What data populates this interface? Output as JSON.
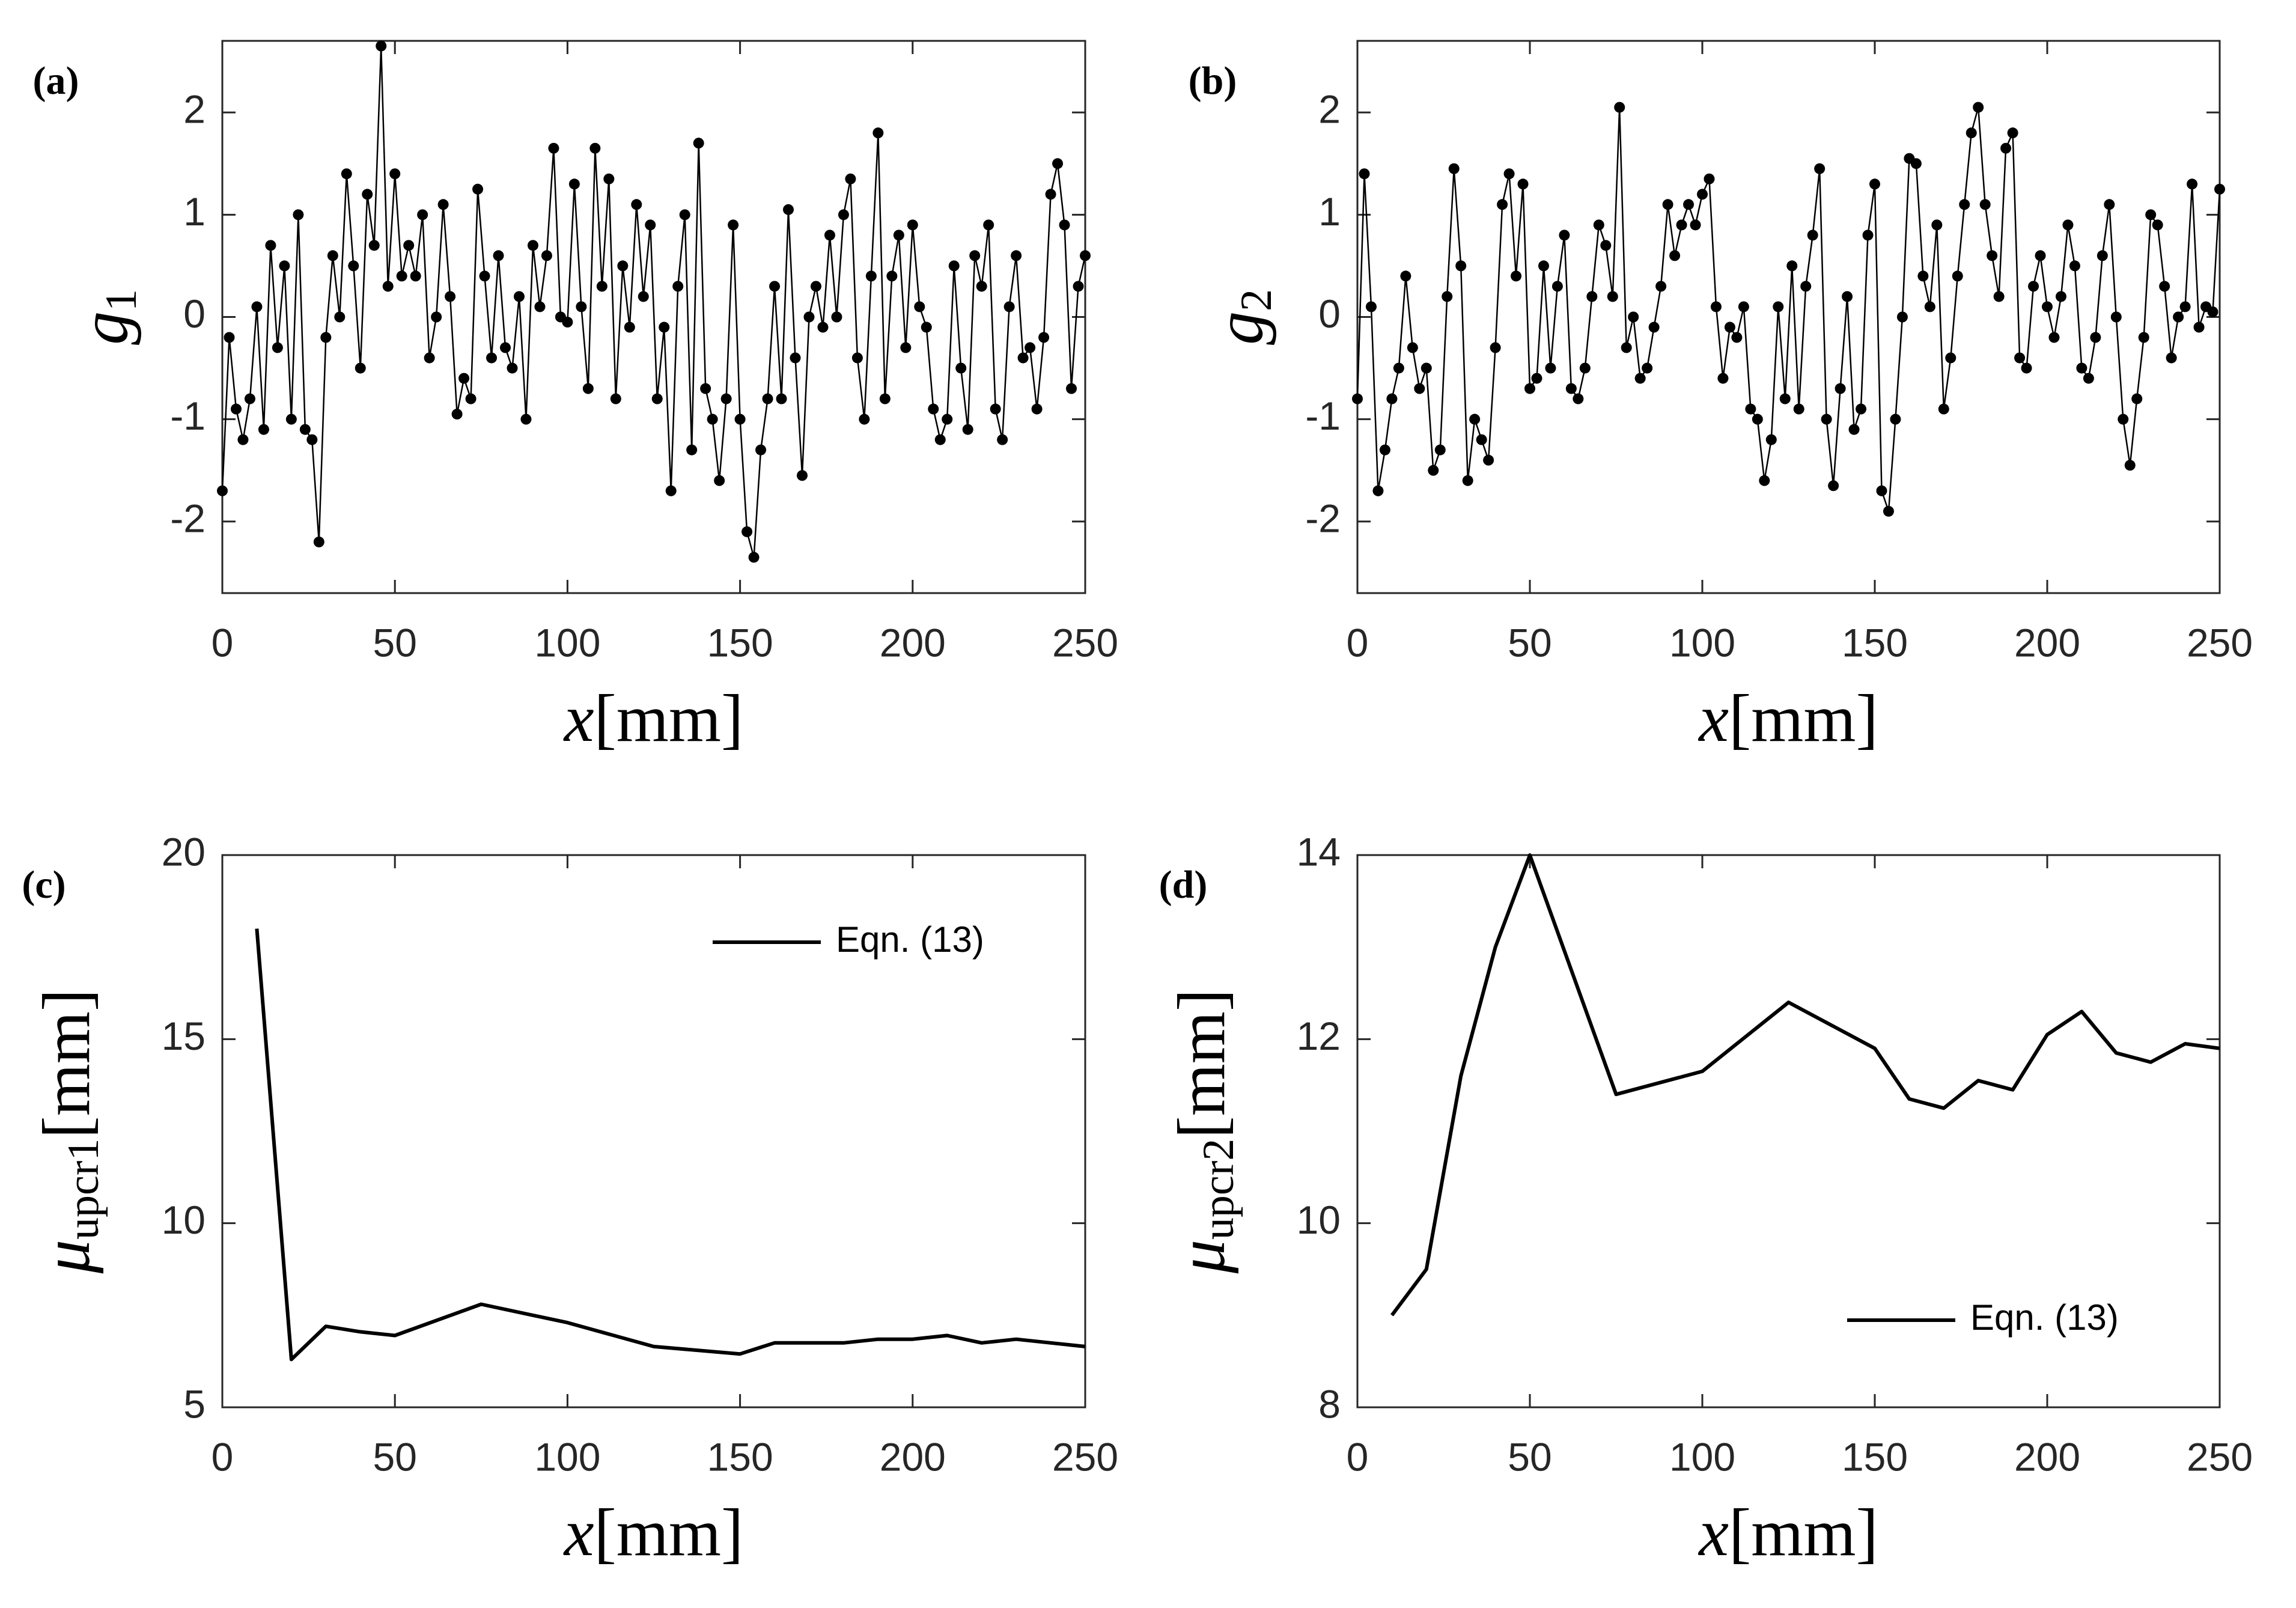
{
  "chart_data": [
    {
      "type": "line",
      "panel": "(a)",
      "markers": true,
      "xlabel": {
        "symbol": "x",
        "unit": "[mm]"
      },
      "ylabel": {
        "symbol": "g",
        "subscript": "1"
      },
      "xlim": [
        0,
        250
      ],
      "xticks": [
        0,
        50,
        100,
        150,
        200,
        250
      ],
      "ylim": [
        -2.7,
        2.7
      ],
      "yticks": [
        -2,
        -1,
        0,
        1,
        2
      ],
      "x": [
        0,
        2,
        4,
        6,
        8,
        10,
        12,
        14,
        16,
        18,
        20,
        22,
        24,
        26,
        28,
        30,
        32,
        34,
        36,
        38,
        40,
        42,
        44,
        46,
        48,
        50,
        52,
        54,
        56,
        58,
        60,
        62,
        64,
        66,
        68,
        70,
        72,
        74,
        76,
        78,
        80,
        82,
        84,
        86,
        88,
        90,
        92,
        94,
        96,
        98,
        100,
        102,
        104,
        106,
        108,
        110,
        112,
        114,
        116,
        118,
        120,
        122,
        124,
        126,
        128,
        130,
        132,
        134,
        136,
        138,
        140,
        142,
        144,
        146,
        148,
        150,
        152,
        154,
        156,
        158,
        160,
        162,
        164,
        166,
        168,
        170,
        172,
        174,
        176,
        178,
        180,
        182,
        184,
        186,
        188,
        190,
        192,
        194,
        196,
        198,
        200,
        202,
        204,
        206,
        208,
        210,
        212,
        214,
        216,
        218,
        220,
        222,
        224,
        226,
        228,
        230,
        232,
        234,
        236,
        238,
        240,
        242,
        244,
        246,
        248,
        250
      ],
      "series": [
        {
          "color": "#000000",
          "values": [
            -1.7,
            -0.2,
            -0.9,
            -1.2,
            -0.8,
            0.1,
            -1.1,
            0.7,
            -0.3,
            0.5,
            -1.0,
            1.0,
            -1.1,
            -1.2,
            -2.2,
            -0.2,
            0.6,
            0.0,
            1.4,
            0.5,
            -0.5,
            1.2,
            0.7,
            2.65,
            0.3,
            1.4,
            0.4,
            0.7,
            0.4,
            1.0,
            -0.4,
            0.0,
            1.1,
            0.2,
            -0.95,
            -0.6,
            -0.8,
            1.25,
            0.4,
            -0.4,
            0.6,
            -0.3,
            -0.5,
            0.2,
            -1.0,
            0.7,
            0.1,
            0.6,
            1.65,
            0.0,
            -0.05,
            1.3,
            0.1,
            -0.7,
            1.65,
            0.3,
            1.35,
            -0.8,
            0.5,
            -0.1,
            1.1,
            0.2,
            0.9,
            -0.8,
            -0.1,
            -1.7,
            0.3,
            1.0,
            -1.3,
            1.7,
            -0.7,
            -1.0,
            -1.6,
            -0.8,
            0.9,
            -1.0,
            -2.1,
            -2.35,
            -1.3,
            -0.8,
            0.3,
            -0.8,
            1.05,
            -0.4,
            -1.55,
            0.0,
            0.3,
            -0.1,
            0.8,
            0.0,
            1.0,
            1.35,
            -0.4,
            -1.0,
            0.4,
            1.8,
            -0.8,
            0.4,
            0.8,
            -0.3,
            0.9,
            0.1,
            -0.1,
            -0.9,
            -1.2,
            -1.0,
            0.5,
            -0.5,
            -1.1,
            0.6,
            0.3,
            0.9,
            -0.9,
            -1.2,
            0.1,
            0.6,
            -0.4,
            -0.3,
            -0.9,
            -0.2,
            1.2,
            1.5,
            0.9,
            -0.7,
            0.3,
            0.6
          ]
        }
      ]
    },
    {
      "type": "line",
      "panel": "(b)",
      "markers": true,
      "xlabel": {
        "symbol": "x",
        "unit": "[mm]"
      },
      "ylabel": {
        "symbol": "g",
        "subscript": "2"
      },
      "xlim": [
        0,
        250
      ],
      "xticks": [
        0,
        50,
        100,
        150,
        200,
        250
      ],
      "ylim": [
        -2.7,
        2.7
      ],
      "yticks": [
        -2,
        -1,
        0,
        1,
        2
      ],
      "x": [
        0,
        2,
        4,
        6,
        8,
        10,
        12,
        14,
        16,
        18,
        20,
        22,
        24,
        26,
        28,
        30,
        32,
        34,
        36,
        38,
        40,
        42,
        44,
        46,
        48,
        50,
        52,
        54,
        56,
        58,
        60,
        62,
        64,
        66,
        68,
        70,
        72,
        74,
        76,
        78,
        80,
        82,
        84,
        86,
        88,
        90,
        92,
        94,
        96,
        98,
        100,
        102,
        104,
        106,
        108,
        110,
        112,
        114,
        116,
        118,
        120,
        122,
        124,
        126,
        128,
        130,
        132,
        134,
        136,
        138,
        140,
        142,
        144,
        146,
        148,
        150,
        152,
        154,
        156,
        158,
        160,
        162,
        164,
        166,
        168,
        170,
        172,
        174,
        176,
        178,
        180,
        182,
        184,
        186,
        188,
        190,
        192,
        194,
        196,
        198,
        200,
        202,
        204,
        206,
        208,
        210,
        212,
        214,
        216,
        218,
        220,
        222,
        224,
        226,
        228,
        230,
        232,
        234,
        236,
        238,
        240,
        242,
        244,
        246,
        248,
        250
      ],
      "series": [
        {
          "color": "#000000",
          "values": [
            -0.8,
            1.4,
            0.1,
            -1.7,
            -1.3,
            -0.8,
            -0.5,
            0.4,
            -0.3,
            -0.7,
            -0.5,
            -1.5,
            -1.3,
            0.2,
            1.45,
            0.5,
            -1.6,
            -1.0,
            -1.2,
            -1.4,
            -0.3,
            1.1,
            1.4,
            0.4,
            1.3,
            -0.7,
            -0.6,
            0.5,
            -0.5,
            0.3,
            0.8,
            -0.7,
            -0.8,
            -0.5,
            0.2,
            0.9,
            0.7,
            0.2,
            2.05,
            -0.3,
            0.0,
            -0.6,
            -0.5,
            -0.1,
            0.3,
            1.1,
            0.6,
            0.9,
            1.1,
            0.9,
            1.2,
            1.35,
            0.1,
            -0.6,
            -0.1,
            -0.2,
            0.1,
            -0.9,
            -1.0,
            -1.6,
            -1.2,
            0.1,
            -0.8,
            0.5,
            -0.9,
            0.3,
            0.8,
            1.45,
            -1.0,
            -1.65,
            -0.7,
            0.2,
            -1.1,
            -0.9,
            0.8,
            1.3,
            -1.7,
            -1.9,
            -1.0,
            0.0,
            1.55,
            1.5,
            0.4,
            0.1,
            0.9,
            -0.9,
            -0.4,
            0.4,
            1.1,
            1.8,
            2.05,
            1.1,
            0.6,
            0.2,
            1.65,
            1.8,
            -0.4,
            -0.5,
            0.3,
            0.6,
            0.1,
            -0.2,
            0.2,
            0.9,
            0.5,
            -0.5,
            -0.6,
            -0.2,
            0.6,
            1.1,
            0.0,
            -1.0,
            -1.45,
            -0.8,
            -0.2,
            1.0,
            0.9,
            0.3,
            -0.4,
            0.0,
            0.1,
            1.3,
            -0.1,
            0.1,
            0.05,
            1.25
          ]
        }
      ]
    },
    {
      "type": "line",
      "panel": "(c)",
      "markers": false,
      "legend": "upper right",
      "xlabel": {
        "symbol": "x",
        "unit": "[mm]"
      },
      "ylabel": {
        "symbol": "μ",
        "subscript": "upcr1",
        "unit": "[mm]"
      },
      "xlim": [
        0,
        250
      ],
      "xticks": [
        0,
        50,
        100,
        150,
        200,
        250
      ],
      "ylim": [
        5,
        20
      ],
      "yticks": [
        5,
        10,
        15,
        20
      ],
      "x": [
        10,
        20,
        30,
        40,
        50,
        75,
        100,
        125,
        150,
        160,
        170,
        180,
        190,
        200,
        210,
        220,
        230,
        240,
        250
      ],
      "series": [
        {
          "name": "Eqn. (13)",
          "color": "#000000",
          "values": [
            18,
            6.3,
            7.2,
            7.05,
            6.95,
            7.8,
            7.3,
            6.65,
            6.45,
            6.75,
            6.75,
            6.75,
            6.85,
            6.85,
            6.95,
            6.75,
            6.85,
            6.75,
            6.65
          ]
        }
      ]
    },
    {
      "type": "line",
      "panel": "(d)",
      "markers": false,
      "legend": "lower right",
      "xlabel": {
        "symbol": "x",
        "unit": "[mm]"
      },
      "ylabel": {
        "symbol": "μ",
        "subscript": "upcr2",
        "unit": "[mm]"
      },
      "xlim": [
        0,
        250
      ],
      "xticks": [
        0,
        50,
        100,
        150,
        200,
        250
      ],
      "ylim": [
        8,
        14
      ],
      "yticks": [
        8,
        10,
        12,
        14
      ],
      "x": [
        10,
        20,
        30,
        40,
        50,
        75,
        100,
        125,
        150,
        160,
        170,
        180,
        190,
        200,
        210,
        220,
        230,
        240,
        250
      ],
      "series": [
        {
          "name": "Eqn. (13)",
          "color": "#000000",
          "values": [
            9,
            9.5,
            11.6,
            13,
            14,
            11.4,
            11.65,
            12.4,
            11.9,
            11.35,
            11.25,
            11.55,
            11.45,
            12.05,
            12.3,
            11.85,
            11.75,
            11.95,
            11.9
          ]
        }
      ]
    }
  ]
}
